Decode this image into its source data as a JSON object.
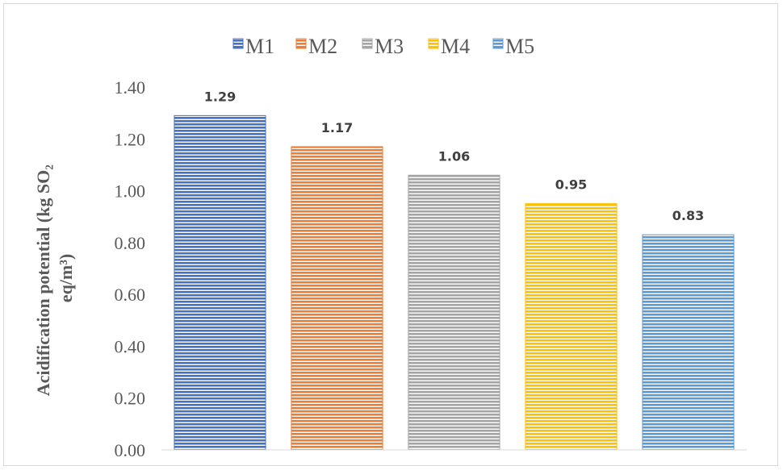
{
  "chart_data": {
    "type": "bar",
    "categories": [
      "M1",
      "M2",
      "M3",
      "M4",
      "M5"
    ],
    "values": [
      1.29,
      1.17,
      1.06,
      0.95,
      0.83
    ],
    "data_labels": [
      "1.29",
      "1.17",
      "1.06",
      "0.95",
      "0.83"
    ],
    "colors": [
      "#4472C4",
      "#ED7D31",
      "#A5A5A5",
      "#FFC000",
      "#5B9BD5"
    ],
    "ylabel_line1": "Acidification potential (kg SO₂",
    "ylabel_line2": "eq/m³)",
    "ylim": [
      0,
      1.4
    ],
    "yticks": [
      "0.00",
      "0.20",
      "0.40",
      "0.60",
      "0.80",
      "1.00",
      "1.20",
      "1.40"
    ],
    "legend_position": "top",
    "grid": false,
    "bar_fill": "horizontal-striped"
  }
}
